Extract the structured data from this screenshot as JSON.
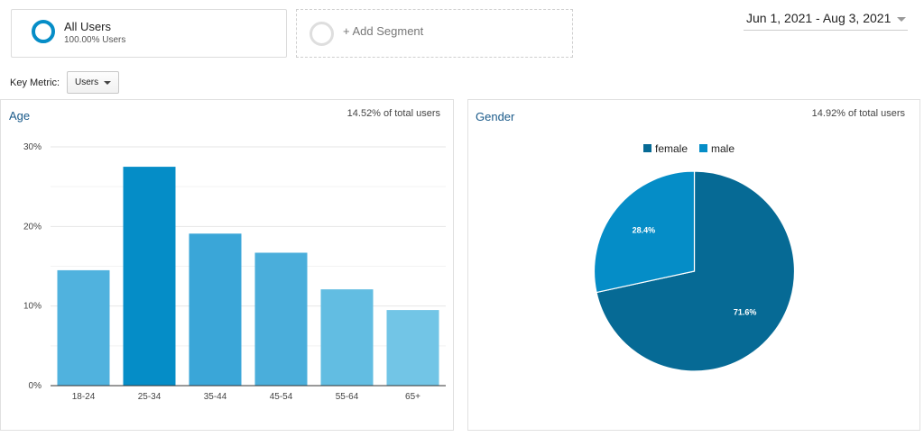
{
  "segment": {
    "name": "All Users",
    "share": "100.00% Users",
    "ring_color": "#058dc7"
  },
  "add_segment": {
    "label": "+ Add Segment"
  },
  "date_range": {
    "label": "Jun 1, 2021 - Aug 3, 2021"
  },
  "key_metric": {
    "label": "Key Metric:",
    "value": "Users"
  },
  "age_panel": {
    "title": "Age",
    "total": "14.52% of total users"
  },
  "gender_panel": {
    "title": "Gender",
    "total": "14.92% of total users"
  },
  "chart_data": [
    {
      "type": "bar",
      "title": "Age",
      "categories": [
        "18-24",
        "25-34",
        "35-44",
        "45-54",
        "55-64",
        "65+"
      ],
      "values": [
        14.5,
        27.5,
        19.1,
        16.7,
        12.1,
        9.5
      ],
      "y_ticks": [
        0,
        10,
        20,
        30
      ],
      "y_tick_labels": [
        "0%",
        "10%",
        "20%",
        "30%"
      ],
      "ylim": [
        0,
        30
      ],
      "grid": true,
      "colors": [
        "#50b2de",
        "#058dc7",
        "#3aa6d8",
        "#4aaedb",
        "#62bde2",
        "#72c5e6"
      ]
    },
    {
      "type": "pie",
      "title": "Gender",
      "legend_position": "top",
      "slices": [
        {
          "name": "female",
          "value": 71.6,
          "label": "71.6%",
          "color": "#066a95"
        },
        {
          "name": "male",
          "value": 28.4,
          "label": "28.4%",
          "color": "#058dc7"
        }
      ]
    }
  ]
}
